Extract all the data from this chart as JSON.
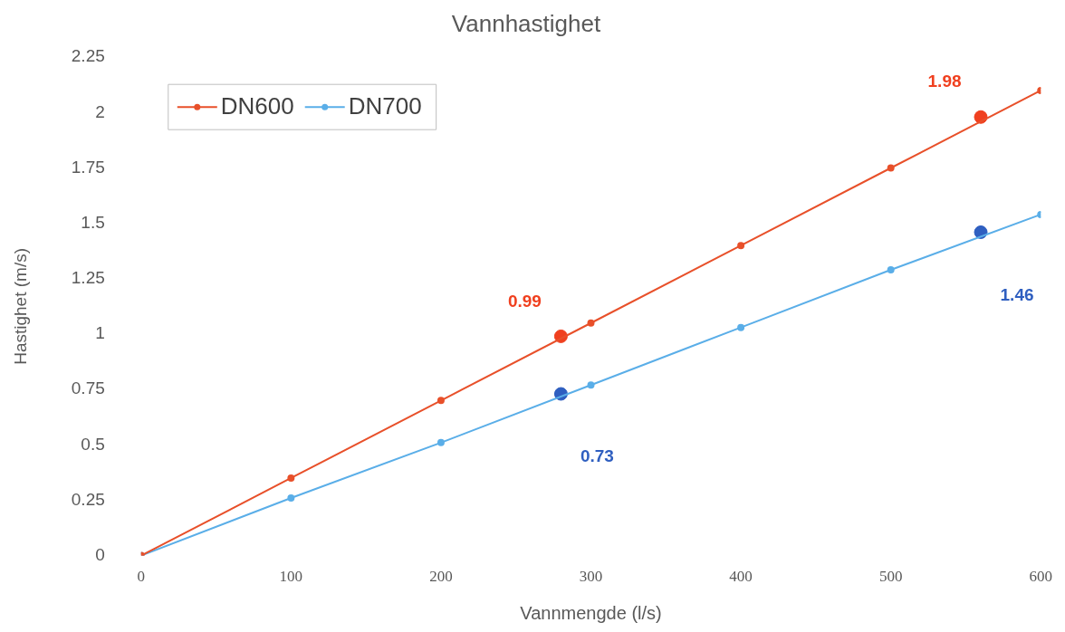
{
  "chart_data": {
    "type": "line",
    "title": "Vannhastighet",
    "xlabel": "Vannmengde (l/s)",
    "ylabel": "Hastighet (m/s)",
    "xlim": [
      0,
      600
    ],
    "xticks": [
      0,
      100,
      200,
      300,
      400,
      500,
      600
    ],
    "ylim": [
      0,
      2.25
    ],
    "yticks": [
      0,
      0.25,
      0.5,
      0.75,
      1,
      1.25,
      1.5,
      1.75,
      2,
      2.25
    ],
    "grid": false,
    "legend": "top left",
    "marker": "circle",
    "line_style": "solid",
    "series": [
      {
        "name": "DN600",
        "color": "#e8502a",
        "x": [
          0,
          100,
          200,
          300,
          400,
          500,
          600
        ],
        "values": [
          0,
          0.35,
          0.7,
          1.05,
          1.4,
          1.75,
          2.1
        ]
      },
      {
        "name": "DN700",
        "color": "#5aaee8",
        "x": [
          0,
          100,
          200,
          300,
          400,
          500,
          600
        ],
        "values": [
          0,
          0.26,
          0.51,
          0.77,
          1.03,
          1.29,
          1.54
        ]
      },
      {
        "type": "scatter",
        "color": "#f0401f",
        "x": [
          280,
          560
        ],
        "values": [
          0.99,
          1.98
        ],
        "value_labels": [
          "0.99",
          "1.98"
        ]
      },
      {
        "type": "scatter",
        "color": "#2f5fc0",
        "x": [
          280,
          560
        ],
        "values": [
          0.73,
          1.46
        ],
        "value_labels": [
          "0.73",
          "1.46"
        ]
      }
    ]
  }
}
